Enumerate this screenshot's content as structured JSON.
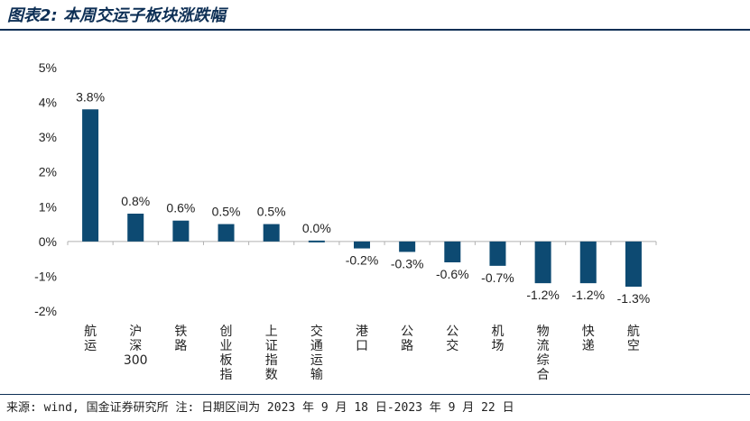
{
  "header": {
    "title": "图表2: 本周交运子板块涨跌幅"
  },
  "footer": {
    "source": "来源: wind, 国金证券研究所    注: 日期区间为 2023 年 9 月 18 日-2023 年 9 月 22 日"
  },
  "chart_data": {
    "type": "bar",
    "title": "图表2: 本周交运子板块涨跌幅",
    "xlabel": "",
    "ylabel": "",
    "categories": [
      "航运",
      "沪深300",
      "铁路",
      "创业板指",
      "上证指数",
      "交通运输",
      "港口",
      "公路",
      "公交",
      "机场",
      "物流综合",
      "快递",
      "航空"
    ],
    "values": [
      3.8,
      0.8,
      0.6,
      0.5,
      0.5,
      0.0,
      -0.2,
      -0.3,
      -0.6,
      -0.7,
      -1.2,
      -1.2,
      -1.3
    ],
    "data_labels": [
      "3.8%",
      "0.8%",
      "0.6%",
      "0.5%",
      "0.5%",
      "0.0%",
      "-0.2%",
      "-0.3%",
      "-0.6%",
      "-0.7%",
      "-1.2%",
      "-1.2%",
      "-1.3%"
    ],
    "ylim": [
      -2,
      5
    ],
    "yticks": [
      5,
      4,
      3,
      2,
      1,
      0,
      -1,
      -2
    ],
    "ytick_labels": [
      "5%",
      "4%",
      "3%",
      "2%",
      "1%",
      "0%",
      "-1%",
      "-2%"
    ],
    "grid": false,
    "legend": "none",
    "bar_color": "#0d4a72"
  }
}
